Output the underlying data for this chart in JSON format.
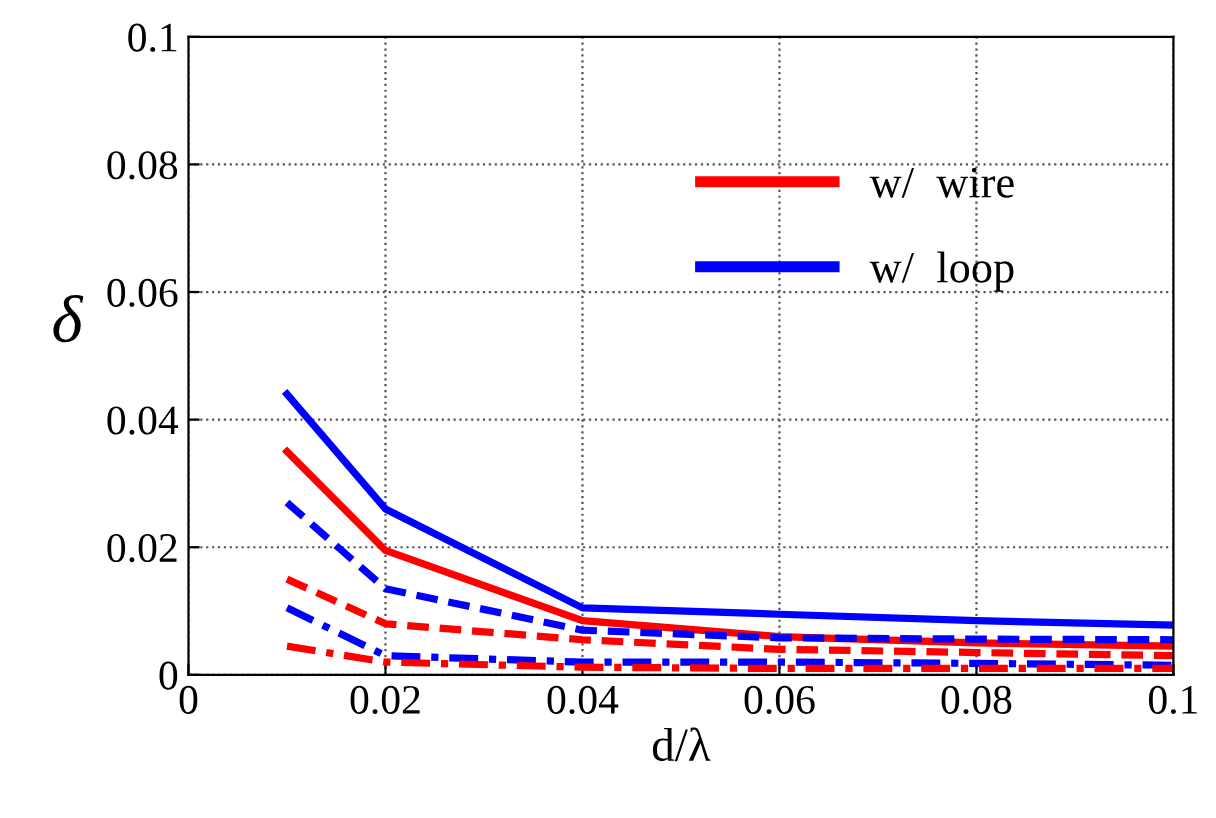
{
  "chart_data": {
    "type": "line",
    "xlabel": "d/λ",
    "ylabel": "δ",
    "x": [
      0.01,
      0.02,
      0.04,
      0.06,
      0.08,
      0.1
    ],
    "xlim": [
      0,
      0.1
    ],
    "xticks": [
      0,
      0.02,
      0.04,
      0.06,
      0.08,
      0.1
    ],
    "ylim": [
      0,
      0.1
    ],
    "yticks": [
      0,
      0.02,
      0.04,
      0.06,
      0.08,
      0.1
    ],
    "grid": true,
    "legend": "top right",
    "marker": "none",
    "series": [
      {
        "name": "w/  wire",
        "color": "#ff0000",
        "line_style": "solid",
        "values": [
          0.035,
          0.0195,
          0.0085,
          0.006,
          0.005,
          0.0045
        ]
      },
      {
        "name": "w/  loop",
        "color": "#0000ff",
        "line_style": "solid",
        "values": [
          0.044,
          0.026,
          0.0105,
          0.0095,
          0.0085,
          0.0078
        ]
      },
      {
        "color": "#0000ff",
        "line_style": "dashed",
        "values": [
          0.027,
          0.0135,
          0.007,
          0.0058,
          0.0056,
          0.0055
        ]
      },
      {
        "color": "#ff0000",
        "line_style": "dashed",
        "values": [
          0.015,
          0.008,
          0.0055,
          0.004,
          0.0035,
          0.003
        ]
      },
      {
        "color": "#0000ff",
        "line_style": "dashdot",
        "values": [
          0.0105,
          0.003,
          0.002,
          0.002,
          0.0018,
          0.0015
        ]
      },
      {
        "color": "#ff0000",
        "line_style": "dashdot",
        "values": [
          0.0045,
          0.002,
          0.0012,
          0.001,
          0.001,
          0.001
        ]
      }
    ]
  }
}
